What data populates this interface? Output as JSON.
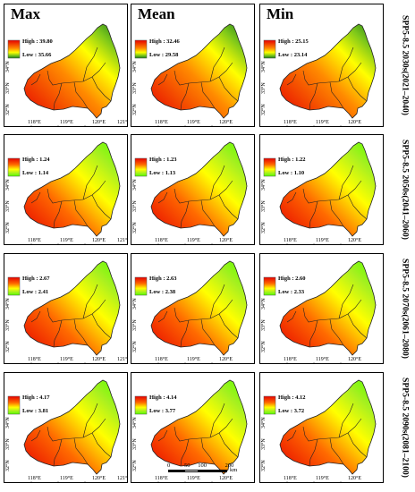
{
  "columns": [
    "Max",
    "Mean",
    "Min"
  ],
  "rows": [
    {
      "label": "SPP5-8.5 2030s(2021–2040)",
      "scheme": "red-green",
      "max": {
        "high": "High : 39.80",
        "low": "Low : 35.66"
      },
      "mean": {
        "high": "High : 32.46",
        "low": "Low : 29.58"
      },
      "min": {
        "high": "High : 25.15",
        "low": "Low : 23.14"
      }
    },
    {
      "label": "SPP5-8.5 2050s(2041–2060)",
      "scheme": "red-lime",
      "max": {
        "high": "High : 1.24",
        "low": "Low : 1.14"
      },
      "mean": {
        "high": "High : 1.23",
        "low": "Low : 1.13"
      },
      "min": {
        "high": "High : 1.22",
        "low": "Low : 1.10"
      }
    },
    {
      "label": "SPP5-8.5 2070s(2061–2080)",
      "scheme": "red-lime",
      "max": {
        "high": "High : 2.67",
        "low": "Low : 2.41"
      },
      "mean": {
        "high": "High : 2.63",
        "low": "Low : 2.38"
      },
      "min": {
        "high": "High : 2.60",
        "low": "Low : 2.33"
      }
    },
    {
      "label": "SPP5-8.5 2090s(2081–2100)",
      "scheme": "red-lime",
      "max": {
        "high": "High : 4.17",
        "low": "Low : 3.81"
      },
      "mean": {
        "high": "High : 4.14",
        "low": "Low : 3.77"
      },
      "min": {
        "high": "High : 4.12",
        "low": "Low : 3.72"
      }
    }
  ],
  "lat_ticks": [
    "34°N",
    "33°N",
    "32°N"
  ],
  "lon_ticks_a": [
    "118°E",
    "119°E",
    "120°E",
    "121°E"
  ],
  "lon_ticks_b": [
    "118°E",
    "119°E",
    "120°E"
  ],
  "scale": {
    "labels": [
      "0",
      "50",
      "100",
      "200"
    ],
    "unit": "km"
  },
  "colors": {
    "high": "#e60000",
    "mid": "#ffff00",
    "low_green": "#1a7a1a",
    "low_lime": "#55ff00"
  }
}
